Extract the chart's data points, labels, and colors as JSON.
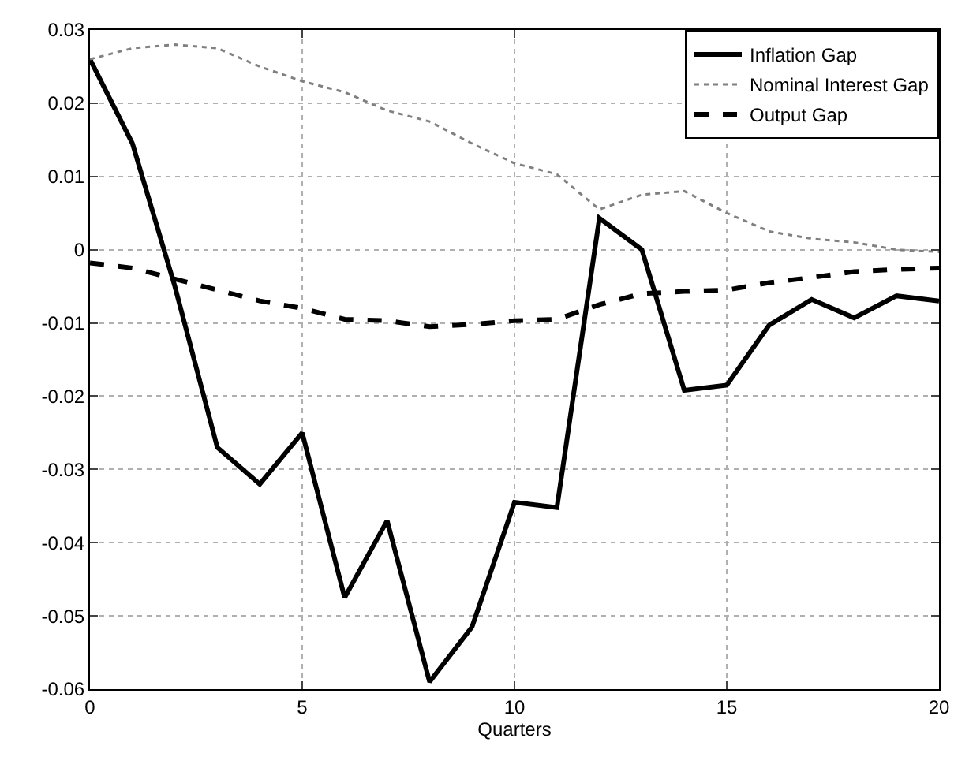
{
  "chart_data": {
    "type": "line",
    "xlabel": "Quarters",
    "x": [
      0,
      1,
      2,
      3,
      4,
      5,
      6,
      7,
      8,
      9,
      10,
      11,
      12,
      13,
      14,
      15,
      16,
      17,
      18,
      19,
      20
    ],
    "series": [
      {
        "name": "Inflation Gap",
        "color": "#000000",
        "line_style": "solid",
        "values": [
          0.026,
          0.0145,
          -0.005,
          -0.027,
          -0.032,
          -0.025,
          -0.0475,
          -0.037,
          -0.059,
          -0.0515,
          -0.0345,
          -0.0352,
          0.0043,
          0.0,
          -0.0192,
          -0.0185,
          -0.0103,
          -0.0068,
          -0.0093,
          -0.0063,
          -0.007
        ]
      },
      {
        "name": "Nominal Interest Gap",
        "color": "#808080",
        "line_style": "dotted",
        "values": [
          0.026,
          0.0275,
          0.028,
          0.0275,
          0.025,
          0.023,
          0.0215,
          0.019,
          0.0175,
          0.0145,
          0.0118,
          0.0103,
          0.0055,
          0.0075,
          0.008,
          0.005,
          0.0025,
          0.0015,
          0.001,
          0.0,
          -0.0003
        ]
      },
      {
        "name": "Output Gap",
        "color": "#000000",
        "line_style": "dashed",
        "values": [
          -0.0018,
          -0.0025,
          -0.004,
          -0.0055,
          -0.007,
          -0.008,
          -0.0095,
          -0.0097,
          -0.0105,
          -0.0102,
          -0.0097,
          -0.0095,
          -0.0075,
          -0.006,
          -0.0057,
          -0.0055,
          -0.0045,
          -0.0038,
          -0.003,
          -0.0027,
          -0.0025
        ]
      }
    ],
    "xlim": [
      0,
      20
    ],
    "xticks": [
      0,
      5,
      10,
      15,
      20
    ],
    "ylim": [
      -0.06,
      0.03
    ],
    "yticks": [
      -0.06,
      -0.05,
      -0.04,
      -0.03,
      -0.02,
      -0.01,
      0,
      0.01,
      0.02,
      0.03
    ],
    "grid": true,
    "legend": "top right"
  }
}
